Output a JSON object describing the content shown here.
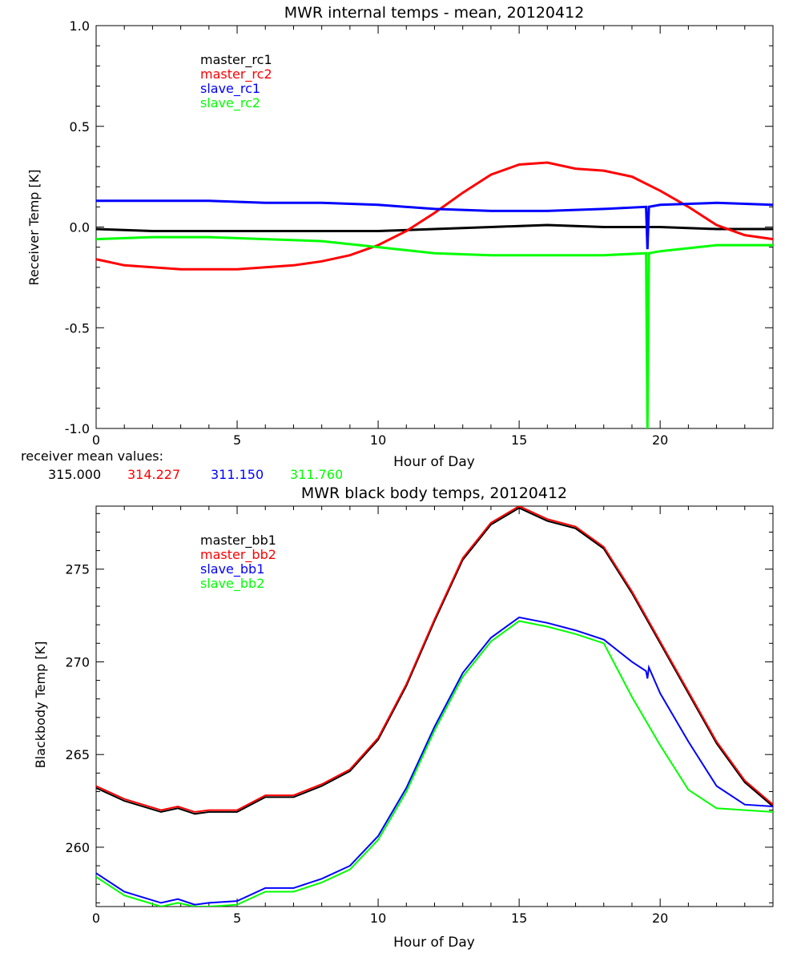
{
  "receiver_means": {
    "label": "receiver mean values:",
    "values": [
      {
        "text": "315.000",
        "color": "#000000"
      },
      {
        "text": "314.227",
        "color": "#ff0000"
      },
      {
        "text": "311.150",
        "color": "#0000ff"
      },
      {
        "text": "311.760",
        "color": "#00ff00"
      }
    ]
  },
  "chart_data": [
    {
      "type": "line",
      "title": "MWR internal temps - mean, 20120412",
      "xlabel": "Hour of Day",
      "ylabel": "Receiver Temp [K]",
      "xlim": [
        0,
        24
      ],
      "ylim": [
        -1.0,
        1.0
      ],
      "xticks": [
        0,
        5,
        10,
        15,
        20
      ],
      "xtick_labels": [
        "0",
        "5",
        "10",
        "15",
        "20"
      ],
      "yticks": [
        -1.0,
        -0.5,
        0.0,
        0.5,
        1.0
      ],
      "ytick_labels": [
        "-1.0",
        "-0.5",
        "0.0",
        "0.5",
        "1.0"
      ],
      "grid": false,
      "legend": "top-left",
      "series": [
        {
          "name": "master_rc1",
          "color": "#000000",
          "x": [
            0,
            2,
            4,
            6,
            8,
            10,
            12,
            14,
            16,
            18,
            20,
            22,
            24
          ],
          "y": [
            -0.01,
            -0.02,
            -0.02,
            -0.02,
            -0.02,
            -0.02,
            -0.01,
            0.0,
            0.01,
            0.0,
            0.0,
            -0.01,
            -0.01
          ]
        },
        {
          "name": "master_rc2",
          "color": "#ff0000",
          "x": [
            0,
            1,
            2,
            3,
            4,
            5,
            6,
            7,
            8,
            9,
            10,
            11,
            12,
            13,
            14,
            15,
            16,
            17,
            18,
            19,
            20,
            21,
            22,
            23,
            24
          ],
          "y": [
            -0.16,
            -0.19,
            -0.2,
            -0.21,
            -0.21,
            -0.21,
            -0.2,
            -0.19,
            -0.17,
            -0.14,
            -0.09,
            -0.02,
            0.07,
            0.17,
            0.26,
            0.31,
            0.32,
            0.29,
            0.28,
            0.25,
            0.18,
            0.1,
            0.01,
            -0.04,
            -0.06
          ]
        },
        {
          "name": "slave_rc1",
          "color": "#0000ff",
          "x": [
            0,
            2,
            4,
            6,
            8,
            10,
            12,
            14,
            16,
            18,
            19.5,
            19.55,
            19.6,
            20,
            22,
            24
          ],
          "y": [
            0.13,
            0.13,
            0.13,
            0.12,
            0.12,
            0.11,
            0.09,
            0.08,
            0.08,
            0.09,
            0.1,
            -0.11,
            0.1,
            0.11,
            0.12,
            0.11
          ]
        },
        {
          "name": "slave_rc2",
          "color": "#00ff00",
          "x": [
            0,
            2,
            4,
            6,
            8,
            10,
            12,
            14,
            16,
            18,
            19.5,
            19.55,
            19.6,
            20,
            22,
            24
          ],
          "y": [
            -0.06,
            -0.05,
            -0.05,
            -0.06,
            -0.07,
            -0.1,
            -0.13,
            -0.14,
            -0.14,
            -0.14,
            -0.13,
            -1.0,
            -0.13,
            -0.12,
            -0.09,
            -0.09
          ]
        }
      ]
    },
    {
      "type": "line",
      "title": "MWR black body temps, 20120412",
      "xlabel": "Hour of Day",
      "ylabel": "Blackbody Temp [K]",
      "xlim": [
        0,
        24
      ],
      "ylim": [
        256.8,
        278.4
      ],
      "xticks": [
        0,
        5,
        10,
        15,
        20
      ],
      "xtick_labels": [
        "0",
        "5",
        "10",
        "15",
        "20"
      ],
      "yticks": [
        260,
        265,
        270,
        275
      ],
      "ytick_labels": [
        "260",
        "265",
        "270",
        "275"
      ],
      "grid": false,
      "legend": "top-left",
      "series": [
        {
          "name": "master_bb1",
          "color": "#000000",
          "x": [
            0,
            1,
            2.3,
            2.9,
            3.5,
            4,
            5,
            6,
            7,
            8,
            9,
            10,
            11,
            12,
            13,
            14,
            15,
            16,
            17,
            18,
            19,
            20,
            21,
            22,
            23,
            24
          ],
          "y": [
            263.2,
            262.5,
            261.9,
            262.1,
            261.8,
            261.9,
            261.9,
            262.7,
            262.7,
            263.3,
            264.1,
            265.8,
            268.7,
            272.2,
            275.5,
            277.4,
            278.3,
            277.6,
            277.2,
            276.1,
            273.7,
            271.0,
            268.3,
            265.6,
            263.5,
            262.2
          ]
        },
        {
          "name": "master_bb2",
          "color": "#ff0000",
          "x": [
            0,
            1,
            2.3,
            2.9,
            3.5,
            4,
            5,
            6,
            7,
            8,
            9,
            10,
            11,
            12,
            13,
            14,
            15,
            16,
            17,
            18,
            19,
            20,
            21,
            22,
            23,
            24
          ],
          "y": [
            263.3,
            262.6,
            262.0,
            262.2,
            261.9,
            262.0,
            262.0,
            262.8,
            262.8,
            263.4,
            264.2,
            265.9,
            268.8,
            272.3,
            275.6,
            277.5,
            278.4,
            277.7,
            277.3,
            276.2,
            273.8,
            271.1,
            268.4,
            265.7,
            263.6,
            262.3
          ]
        },
        {
          "name": "slave_bb1",
          "color": "#0000ff",
          "x": [
            0,
            1,
            2.3,
            2.9,
            3.5,
            4,
            5,
            6,
            7,
            8,
            9,
            10,
            11,
            12,
            13,
            14,
            15,
            16,
            17,
            18,
            19,
            19.5,
            19.55,
            19.6,
            20,
            21,
            22,
            23,
            24
          ],
          "y": [
            258.6,
            257.6,
            257.0,
            257.2,
            256.9,
            257.0,
            257.1,
            257.8,
            257.8,
            258.3,
            259.0,
            260.6,
            263.2,
            266.5,
            269.4,
            271.3,
            272.4,
            272.1,
            271.7,
            271.2,
            270.0,
            269.5,
            269.1,
            269.7,
            268.3,
            265.7,
            263.3,
            262.3,
            262.2
          ]
        },
        {
          "name": "slave_bb2",
          "color": "#00ff00",
          "x": [
            0,
            1,
            2.3,
            2.9,
            3.5,
            4,
            5,
            6,
            7,
            8,
            9,
            10,
            11,
            12,
            13,
            14,
            15,
            16,
            17,
            18,
            19,
            20,
            21,
            22,
            23,
            24
          ],
          "y": [
            258.4,
            257.4,
            256.8,
            257.0,
            256.8,
            256.8,
            256.9,
            257.6,
            257.6,
            258.1,
            258.8,
            260.4,
            263.0,
            266.3,
            269.2,
            271.1,
            272.2,
            271.9,
            271.5,
            271.0,
            268.1,
            265.5,
            263.1,
            262.1,
            262.0,
            261.9
          ]
        }
      ]
    }
  ]
}
